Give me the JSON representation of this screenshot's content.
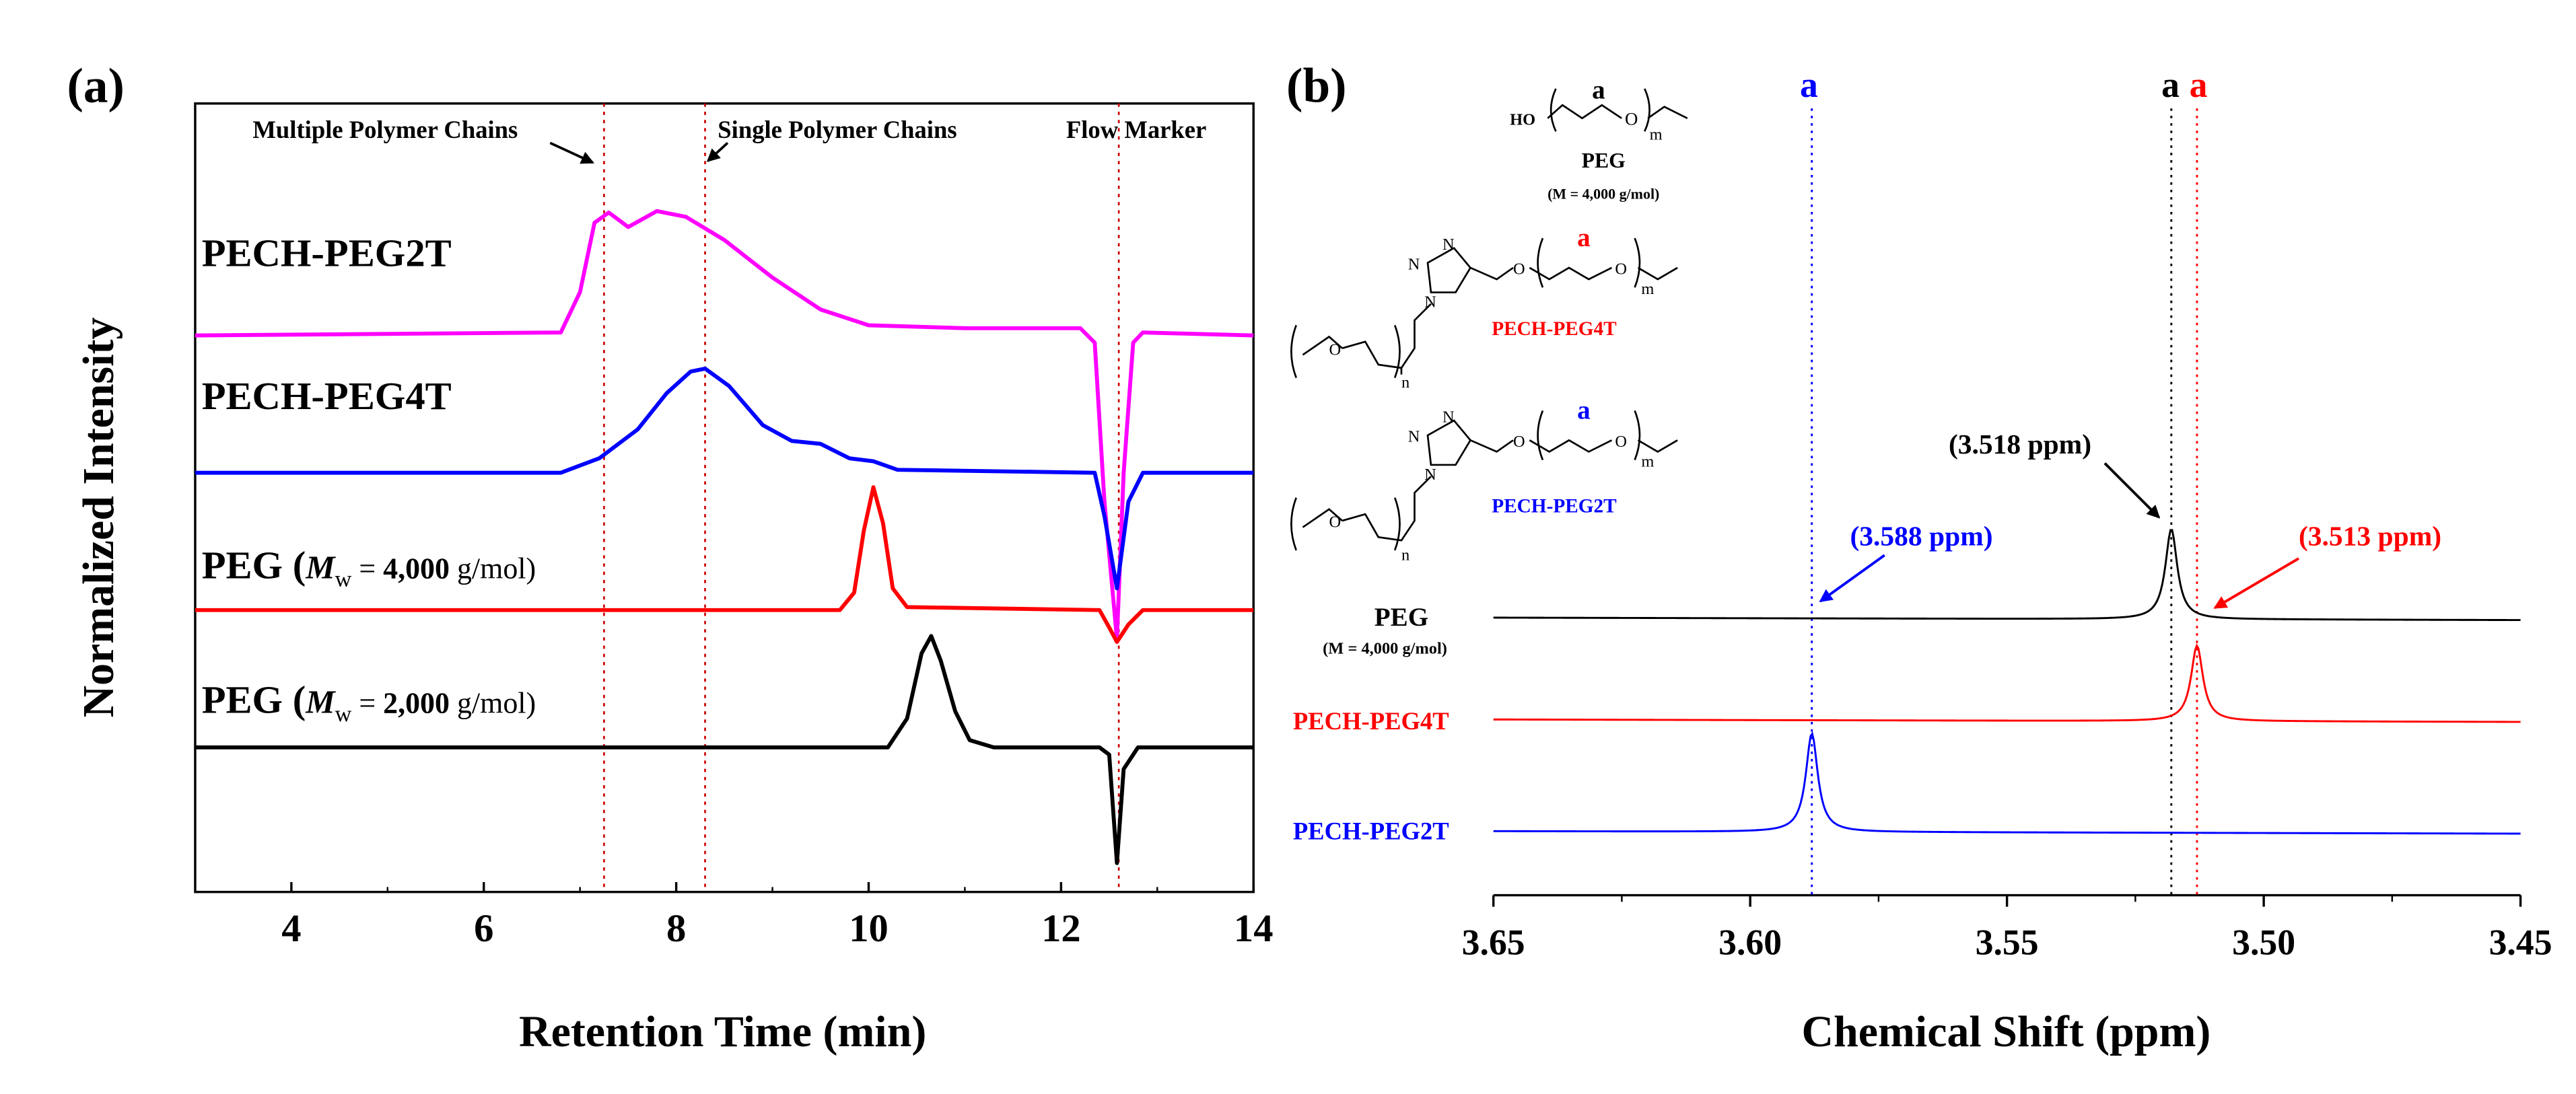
{
  "colors": {
    "magenta": "#ff00ff",
    "blue": "#0000ff",
    "red": "#ff0000",
    "black": "#000000",
    "marker": "#cc0000"
  },
  "panel_a": {
    "label": "(a)",
    "markers": {
      "multiple": "Multiple Polymer Chains",
      "single": "Single Polymer Chains",
      "flow": "Flow Marker"
    },
    "traces": {
      "pech_peg2t": "PECH-PEG2T",
      "pech_peg4t": "PECH-PEG4T",
      "peg4000": {
        "prefix": "PEG (",
        "mw": "M",
        "sub": "w",
        "eq": " = ",
        "val": "4,000",
        "unit": " g/mol)"
      },
      "peg2000": {
        "prefix": "PEG (",
        "mw": "M",
        "sub": "w",
        "eq": " = ",
        "val": "2,000",
        "unit": " g/mol)"
      }
    }
  },
  "panel_b": {
    "label": "(b)",
    "peak_letter": "a",
    "annotations": {
      "ppm_3588": "(3.588 ppm)",
      "ppm_3518": "(3.518 ppm)",
      "ppm_3513": "(3.513 ppm)"
    },
    "structures": {
      "peg_name": "PEG",
      "peg_mw": "(M  = 4,000 g/mol)",
      "ho": "HO",
      "o": "O",
      "m": "m",
      "n": "n",
      "n1": "N",
      "n2": "N",
      "n3": "N",
      "s2_name": "PECH-PEG4T",
      "s3_name": "PECH-PEG2T"
    },
    "traces": {
      "peg_label": "PEG",
      "peg_mw": "(M  = 4,000 g/mol)",
      "pech_peg4t": "PECH-PEG4T",
      "pech_peg2t": "PECH-PEG2T"
    }
  },
  "chart_data": [
    {
      "type": "line",
      "panel": "a",
      "title": "",
      "xlabel": "Retention Time (min)",
      "ylabel": "Normalized Intensity",
      "xlim": [
        3,
        14
      ],
      "xticks": [
        4,
        6,
        8,
        10,
        12,
        14
      ],
      "vertical_markers": [
        7.25,
        8.3,
        12.6
      ],
      "series": [
        {
          "name": "PECH-PEG2T",
          "color": "#ff00ff",
          "offset": 3.0,
          "points": [
            [
              3,
              0
            ],
            [
              6.8,
              0.02
            ],
            [
              7.0,
              0.3
            ],
            [
              7.15,
              0.78
            ],
            [
              7.3,
              0.85
            ],
            [
              7.5,
              0.75
            ],
            [
              7.8,
              0.86
            ],
            [
              8.1,
              0.82
            ],
            [
              8.5,
              0.66
            ],
            [
              9.0,
              0.4
            ],
            [
              9.5,
              0.18
            ],
            [
              10.0,
              0.07
            ],
            [
              11,
              0.05
            ],
            [
              12.2,
              0.05
            ],
            [
              12.35,
              -0.05
            ],
            [
              12.45,
              -1.15
            ],
            [
              12.58,
              -2.1
            ],
            [
              12.65,
              -0.95
            ],
            [
              12.75,
              -0.05
            ],
            [
              12.85,
              0.02
            ],
            [
              14,
              0
            ]
          ]
        },
        {
          "name": "PECH-PEG4T",
          "color": "#0000ff",
          "offset": 2.05,
          "points": [
            [
              3,
              0
            ],
            [
              6.8,
              0
            ],
            [
              7.2,
              0.1
            ],
            [
              7.6,
              0.3
            ],
            [
              7.9,
              0.55
            ],
            [
              8.15,
              0.7
            ],
            [
              8.3,
              0.72
            ],
            [
              8.55,
              0.6
            ],
            [
              8.9,
              0.33
            ],
            [
              9.2,
              0.22
            ],
            [
              9.5,
              0.2
            ],
            [
              9.8,
              0.1
            ],
            [
              10.05,
              0.08
            ],
            [
              10.3,
              0.02
            ],
            [
              12.35,
              0
            ],
            [
              12.45,
              -0.3
            ],
            [
              12.58,
              -0.8
            ],
            [
              12.7,
              -0.2
            ],
            [
              12.85,
              0
            ],
            [
              14,
              0
            ]
          ]
        },
        {
          "name": "PEG (Mw = 4,000 g/mol)",
          "color": "#ff0000",
          "offset": 1.1,
          "points": [
            [
              3,
              0
            ],
            [
              9.7,
              0
            ],
            [
              9.85,
              0.12
            ],
            [
              9.95,
              0.55
            ],
            [
              10.05,
              0.85
            ],
            [
              10.15,
              0.6
            ],
            [
              10.25,
              0.15
            ],
            [
              10.4,
              0.02
            ],
            [
              12.4,
              0
            ],
            [
              12.5,
              -0.12
            ],
            [
              12.58,
              -0.22
            ],
            [
              12.7,
              -0.1
            ],
            [
              12.85,
              0
            ],
            [
              14,
              0
            ]
          ]
        },
        {
          "name": "PEG (Mw = 2,000 g/mol)",
          "color": "#000000",
          "offset": 0.15,
          "points": [
            [
              3,
              0
            ],
            [
              10.2,
              0
            ],
            [
              10.4,
              0.2
            ],
            [
              10.55,
              0.65
            ],
            [
              10.65,
              0.77
            ],
            [
              10.75,
              0.6
            ],
            [
              10.9,
              0.25
            ],
            [
              11.05,
              0.05
            ],
            [
              11.3,
              0
            ],
            [
              12.4,
              0
            ],
            [
              12.5,
              -0.05
            ],
            [
              12.58,
              -0.8
            ],
            [
              12.65,
              -0.15
            ],
            [
              12.8,
              0
            ],
            [
              14,
              0
            ]
          ]
        }
      ]
    },
    {
      "type": "line",
      "panel": "b",
      "title": "",
      "xlabel": "Chemical Shift (ppm)",
      "ylabel": "",
      "xlim": [
        3.65,
        3.45
      ],
      "xticks": [
        3.65,
        3.6,
        3.55,
        3.5,
        3.45
      ],
      "vertical_markers": [
        {
          "x": 3.588,
          "color": "#0000ff"
        },
        {
          "x": 3.518,
          "color": "#000000"
        },
        {
          "x": 3.513,
          "color": "#ff0000"
        }
      ],
      "series": [
        {
          "name": "PEG",
          "color": "#000000",
          "peak": 3.518,
          "height": 55,
          "baseline_offset": 0
        },
        {
          "name": "PECH-PEG4T",
          "color": "#ff0000",
          "peak": 3.513,
          "height": 46,
          "baseline_offset": 62
        },
        {
          "name": "PECH-PEG2T",
          "color": "#0000ff",
          "peak": 3.588,
          "height": 60,
          "baseline_offset": 130
        }
      ]
    }
  ]
}
